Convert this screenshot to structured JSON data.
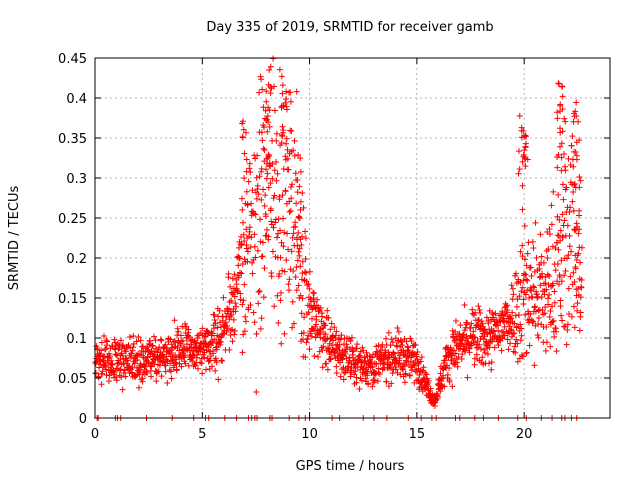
{
  "chart_data": {
    "type": "scatter",
    "title": "Day 335 of 2019, SRMTID for receiver gamb",
    "xlabel": "GPS time / hours",
    "ylabel": "SRMTID / TECUs",
    "xlim": [
      0,
      24
    ],
    "ylim": [
      0,
      0.45
    ],
    "xticks": [
      0,
      5,
      10,
      15,
      20
    ],
    "yticks": [
      0,
      0.05,
      0.1,
      0.15,
      0.2,
      0.25,
      0.3,
      0.35,
      0.4,
      0.45
    ],
    "xtick_labels": [
      "0",
      "5",
      "10",
      "15",
      "20"
    ],
    "ytick_labels": [
      "0",
      "0.05",
      "0.1",
      "0.15",
      "0.2",
      "0.25",
      "0.3",
      "0.35",
      "0.4",
      "0.45"
    ],
    "grid": true,
    "marker": "+",
    "color": "#ff0000",
    "series": [
      {
        "name": "SRMTID",
        "description_profile": [
          {
            "x": 0.0,
            "y": 0.07
          },
          {
            "x": 1.0,
            "y": 0.075
          },
          {
            "x": 2.0,
            "y": 0.07
          },
          {
            "x": 3.0,
            "y": 0.075
          },
          {
            "x": 4.0,
            "y": 0.09
          },
          {
            "x": 5.0,
            "y": 0.08
          },
          {
            "x": 6.0,
            "y": 0.11
          },
          {
            "x": 7.0,
            "y": 0.2
          },
          {
            "x": 8.0,
            "y": 0.28
          },
          {
            "x": 9.0,
            "y": 0.3
          },
          {
            "x": 10.0,
            "y": 0.13
          },
          {
            "x": 11.0,
            "y": 0.09
          },
          {
            "x": 12.0,
            "y": 0.07
          },
          {
            "x": 13.0,
            "y": 0.065
          },
          {
            "x": 14.0,
            "y": 0.08
          },
          {
            "x": 15.0,
            "y": 0.07
          },
          {
            "x": 15.8,
            "y": 0.02
          },
          {
            "x": 16.5,
            "y": 0.08
          },
          {
            "x": 17.5,
            "y": 0.1
          },
          {
            "x": 18.5,
            "y": 0.1
          },
          {
            "x": 19.5,
            "y": 0.13
          },
          {
            "x": 20.0,
            "y": 0.16
          },
          {
            "x": 21.0,
            "y": 0.15
          },
          {
            "x": 21.7,
            "y": 0.2
          },
          {
            "x": 22.3,
            "y": 0.24
          },
          {
            "x": 22.7,
            "y": 0.14
          }
        ],
        "peaks": [
          {
            "x": 7.0,
            "y": 0.38
          },
          {
            "x": 7.9,
            "y": 0.43
          },
          {
            "x": 8.1,
            "y": 0.44
          },
          {
            "x": 8.7,
            "y": 0.445
          },
          {
            "x": 9.0,
            "y": 0.43
          },
          {
            "x": 9.5,
            "y": 0.33
          },
          {
            "x": 19.9,
            "y": 0.38
          },
          {
            "x": 20.0,
            "y": 0.37
          },
          {
            "x": 21.6,
            "y": 0.43
          },
          {
            "x": 21.8,
            "y": 0.42
          },
          {
            "x": 22.4,
            "y": 0.4
          },
          {
            "x": 22.5,
            "y": 0.35
          }
        ],
        "zero_points": [
          0.1,
          0.15,
          0.95,
          1.05,
          1.2,
          2.4,
          3.6,
          4.6,
          5.15,
          5.3,
          6.05,
          6.6,
          7.15,
          7.3,
          7.45,
          7.55,
          8.15,
          8.25,
          9.05,
          9.5,
          9.8,
          10.0,
          11.05,
          11.4,
          12.5,
          13.0,
          13.6,
          14.6,
          15.2,
          15.7,
          15.9,
          16.8,
          17.0,
          17.7,
          18.1,
          18.8,
          19.7,
          20.1,
          20.8,
          21.3,
          21.75,
          21.9,
          22.2,
          22.45
        ]
      }
    ]
  }
}
